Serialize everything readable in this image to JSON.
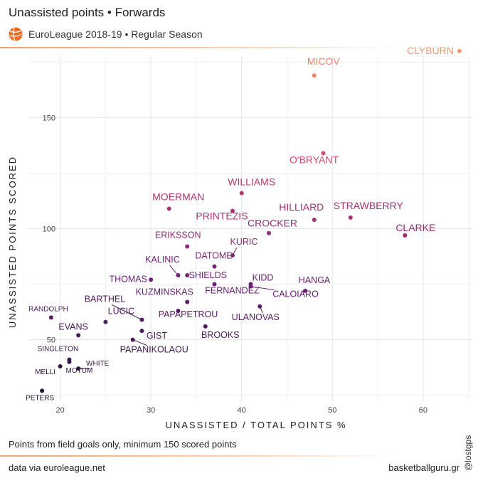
{
  "header": {
    "title": "Unassisted points • Forwards",
    "subtitle": "EuroLeague 2018-19 • Regular Season",
    "logo_icon": "euroleague-ball-icon"
  },
  "footer": {
    "caption": "Points from field goals only, minimum 150 scored points",
    "source": "data via euroleague.net",
    "site": "basketballguru.gr",
    "handle": "@lostgps"
  },
  "colors": {
    "rule": "#f0a472",
    "low": "#1c1230",
    "mid": "#6a2174",
    "high": "#c93a6e",
    "top": "#f8966b"
  },
  "chart_data": {
    "type": "scatter",
    "xlabel": "UNASSISTED / TOTAL POINTS %",
    "ylabel": "UNASSISTED POINTS SCORED",
    "xlim": [
      16.5,
      65.5
    ],
    "ylim": [
      22,
      178
    ],
    "xticks": [
      20,
      30,
      40,
      50,
      60
    ],
    "yticks": [
      50,
      100,
      150
    ],
    "grid": true,
    "color_scale": "color encodes unassisted points (dark purple = low, orange = high)",
    "points": [
      {
        "label": "CLYBURN",
        "x": 64,
        "y": 180
      },
      {
        "label": "MICOV",
        "x": 48,
        "y": 169
      },
      {
        "label": "O'BRYANT",
        "x": 49,
        "y": 134
      },
      {
        "label": "WILLIAMS",
        "x": 40,
        "y": 116
      },
      {
        "label": "MOERMAN",
        "x": 32,
        "y": 109
      },
      {
        "label": "PRINTEZIS",
        "x": 39,
        "y": 108
      },
      {
        "label": "HILLIARD",
        "x": 48,
        "y": 104
      },
      {
        "label": "STRAWBERRY",
        "x": 52,
        "y": 105
      },
      {
        "label": "CROCKER",
        "x": 43,
        "y": 98
      },
      {
        "label": "CLARKE",
        "x": 58,
        "y": 97
      },
      {
        "label": "ERIKSSON",
        "x": 34,
        "y": 92
      },
      {
        "label": "KURIC",
        "x": 39,
        "y": 88
      },
      {
        "label": "DATOME",
        "x": 37,
        "y": 83
      },
      {
        "label": "KALINIC",
        "x": 33,
        "y": 79
      },
      {
        "label": "SHIELDS",
        "x": 34,
        "y": 79
      },
      {
        "label": "THOMAS",
        "x": 30,
        "y": 77
      },
      {
        "label": "KIDD",
        "x": 41,
        "y": 75
      },
      {
        "label": "FERNANDEZ",
        "x": 37,
        "y": 75
      },
      {
        "label": "HANGA",
        "x": 47,
        "y": 72
      },
      {
        "label": "CALOIARO",
        "x": 41,
        "y": 74
      },
      {
        "label": "KUZMINSKAS",
        "x": 34,
        "y": 67
      },
      {
        "label": "ULANOVAS",
        "x": 42,
        "y": 65
      },
      {
        "label": "BARTHEL",
        "x": 29,
        "y": 59
      },
      {
        "label": "PAPAPETROU",
        "x": 33,
        "y": 63
      },
      {
        "label": "LUCIC",
        "x": 25,
        "y": 58
      },
      {
        "label": "BROOKS",
        "x": 36,
        "y": 56
      },
      {
        "label": "GIST",
        "x": 29,
        "y": 54
      },
      {
        "label": "PAPANIKOLAOU",
        "x": 28,
        "y": 50
      },
      {
        "label": "RANDOLPH",
        "x": 19,
        "y": 60
      },
      {
        "label": "EVANS",
        "x": 22,
        "y": 52
      },
      {
        "label": "SINGLETON",
        "x": 21,
        "y": 41
      },
      {
        "label": "WHITE",
        "x": 22,
        "y": 37
      },
      {
        "label": "MELLI",
        "x": 20,
        "y": 38
      },
      {
        "label": "MOTUM",
        "x": 21,
        "y": 40
      },
      {
        "label": "PETERS",
        "x": 18,
        "y": 27
      }
    ]
  }
}
